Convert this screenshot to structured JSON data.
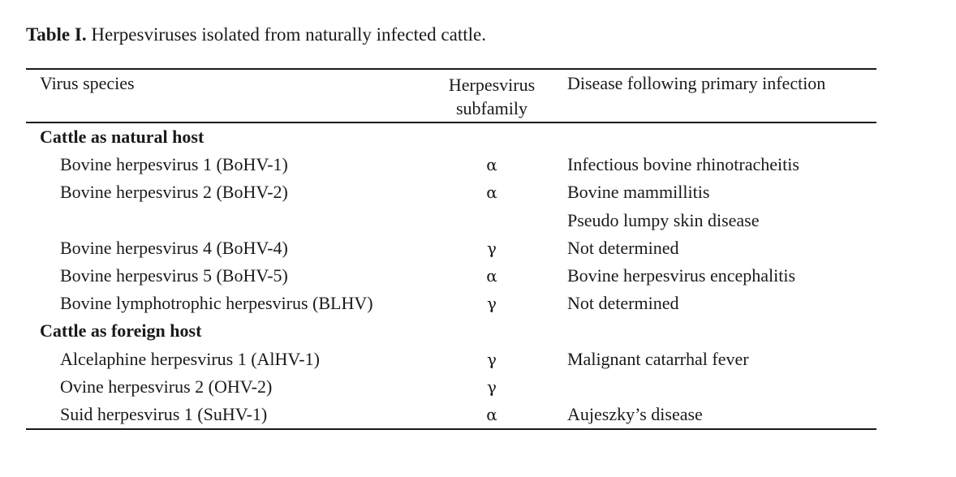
{
  "caption": {
    "label": "Table I.",
    "text": "Herpesviruses isolated from naturally infected cattle."
  },
  "table": {
    "headers": {
      "virus_species": "Virus species",
      "subfamily_line1": "Herpesvirus",
      "subfamily_line2": "subfamily",
      "disease": "Disease following primary infection"
    },
    "rows": [
      {
        "type": "section",
        "virus": "Cattle as natural host",
        "subfamily": "",
        "disease": ""
      },
      {
        "type": "data",
        "virus": "Bovine herpesvirus 1 (BoHV-1)",
        "subfamily": "α",
        "disease": "Infectious bovine rhinotracheitis"
      },
      {
        "type": "data",
        "virus": "Bovine herpesvirus 2 (BoHV-2)",
        "subfamily": "α",
        "disease": "Bovine mammillitis"
      },
      {
        "type": "data",
        "virus": "",
        "subfamily": "",
        "disease": "Pseudo lumpy skin disease"
      },
      {
        "type": "data",
        "virus": "Bovine herpesvirus 4 (BoHV-4)",
        "subfamily": "γ",
        "disease": "Not determined"
      },
      {
        "type": "data",
        "virus": "Bovine herpesvirus 5 (BoHV-5)",
        "subfamily": "α",
        "disease": "Bovine herpesvirus encephalitis"
      },
      {
        "type": "data",
        "virus": "Bovine lymphotrophic herpesvirus (BLHV)",
        "subfamily": "γ",
        "disease": "Not determined"
      },
      {
        "type": "section",
        "virus": "Cattle as foreign host",
        "subfamily": "",
        "disease": ""
      },
      {
        "type": "data",
        "virus": "Alcelaphine herpesvirus 1 (AlHV-1)",
        "subfamily": "γ",
        "disease": "Malignant catarrhal fever"
      },
      {
        "type": "data",
        "virus": "Ovine herpesvirus 2 (OHV-2)",
        "subfamily": "γ",
        "disease": ""
      },
      {
        "type": "data",
        "virus": "Suid herpesvirus 1 (SuHV-1)",
        "subfamily": "α",
        "disease": "Aujeszky’s disease"
      }
    ]
  }
}
